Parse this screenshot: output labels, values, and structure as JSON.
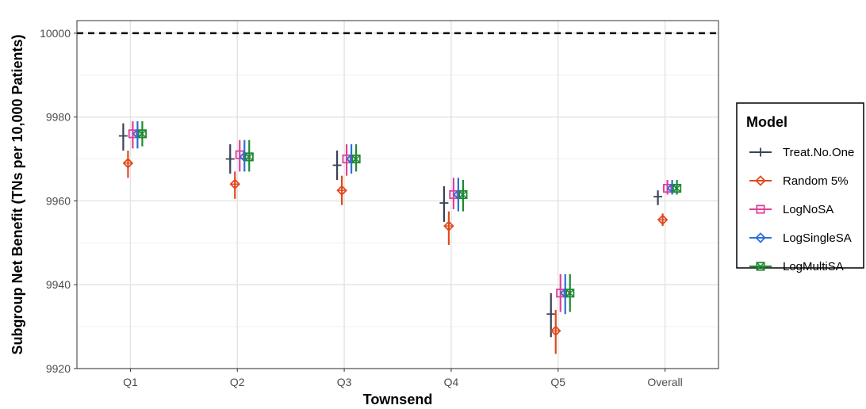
{
  "chart_data": {
    "type": "scatter",
    "xlabel": "Townsend",
    "ylabel": "Subgroup Net Benefit (TNs per 10,000 Patients)",
    "categories": [
      "Q1",
      "Q2",
      "Q3",
      "Q4",
      "Q5",
      "Overall"
    ],
    "ylim": [
      9920,
      10003
    ],
    "yticks": [
      9920,
      9940,
      9960,
      9980,
      10000
    ],
    "reference_line": 10000,
    "grid": true,
    "legend": {
      "title": "Model",
      "position": "right"
    },
    "series": [
      {
        "name": "Treat.No.One",
        "color": "#3a4158",
        "marker": "plus",
        "values": [
          9975.5,
          9970,
          9968.5,
          9959.5,
          9933,
          9961
        ],
        "lower": [
          9972,
          9966.5,
          9965,
          9955,
          9927.5,
          9959
        ],
        "upper": [
          9978.5,
          9973.5,
          9972,
          9963.5,
          9938,
          9962.5
        ]
      },
      {
        "name": "Random 5%",
        "color": "#e04a1f",
        "marker": "diamond-plus",
        "values": [
          9969,
          9964,
          9962.5,
          9954,
          9929,
          9955.5
        ],
        "lower": [
          9965.5,
          9960.5,
          9959,
          9949.5,
          9923.5,
          9954
        ],
        "upper": [
          9972,
          9967,
          9966,
          9957.5,
          9934,
          9957
        ]
      },
      {
        "name": "LogNoSA",
        "color": "#e0409a",
        "marker": "square",
        "values": [
          9976,
          9971,
          9970,
          9961.5,
          9938,
          9963
        ],
        "lower": [
          9972.5,
          9967,
          9966,
          9958,
          9933.5,
          9961.5
        ],
        "upper": [
          9979,
          9974.5,
          9973.5,
          9965.5,
          9942.5,
          9965
        ]
      },
      {
        "name": "LogSingleSA",
        "color": "#2b6fd6",
        "marker": "diamond",
        "values": [
          9976,
          9970.5,
          9970,
          9961.5,
          9938,
          9963
        ],
        "lower": [
          9972.5,
          9967,
          9966.5,
          9957.5,
          9933,
          9961.5
        ],
        "upper": [
          9979,
          9974.5,
          9973.5,
          9965.5,
          9942.5,
          9965
        ]
      },
      {
        "name": "LogMultiSA",
        "color": "#1e8a2e",
        "marker": "square-x",
        "values": [
          9976,
          9970.5,
          9970,
          9961.5,
          9938,
          9963
        ],
        "lower": [
          9973,
          9967,
          9967,
          9957.5,
          9933.5,
          9961.5
        ],
        "upper": [
          9979,
          9974.5,
          9973.5,
          9965,
          9942.5,
          9965
        ]
      }
    ]
  }
}
